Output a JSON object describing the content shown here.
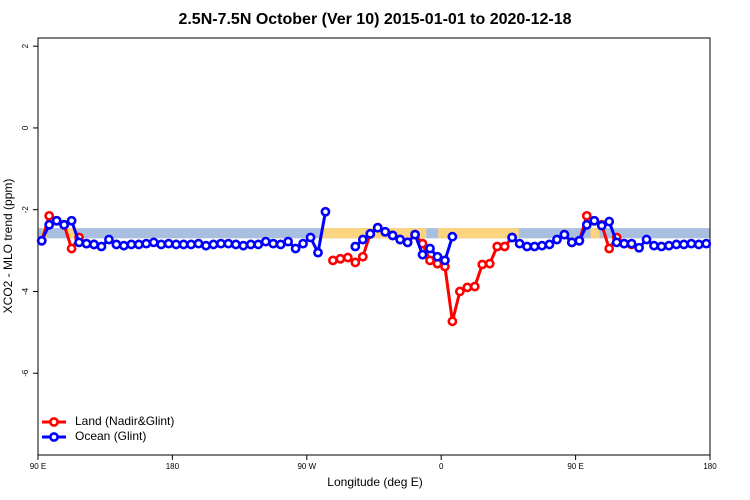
{
  "chart_data": {
    "type": "line",
    "title": "2.5N-7.5N October (Ver 10)   2015-01-01 to 2020-12-18",
    "x_label": "Longitude (deg E)",
    "y_label": "XCO2 - MLO trend (ppm)",
    "xlim": [
      90,
      540
    ],
    "ylim": [
      -8,
      2.2
    ],
    "xticks": [
      {
        "value": 90,
        "label": "90 E"
      },
      180,
      {
        "value": 270,
        "label": "90 W"
      },
      {
        "value": 360,
        "label": "0"
      },
      {
        "value": 450,
        "label": "90 E"
      },
      {
        "value": 540,
        "label": "180"
      }
    ],
    "yticks": [
      2,
      0,
      -2,
      -4,
      -6
    ],
    "legend": "bottom-left",
    "mask_band": {
      "ylim": [
        -2.7,
        -2.45
      ],
      "ocean_color": "#a9bfe0",
      "land_color": "#fbd480",
      "land_spans": [
        [
          280,
          350
        ],
        [
          358,
          412
        ],
        [
          93,
          96
        ],
        [
          110,
          116
        ],
        [
          460,
          466
        ]
      ]
    },
    "x": [
      92.5,
      97.5,
      102.5,
      107.5,
      112.5,
      117.5,
      122.5,
      127.5,
      132.5,
      137.5,
      142.5,
      147.5,
      152.5,
      157.5,
      162.5,
      167.5,
      172.5,
      177.5,
      182.5,
      187.5,
      192.5,
      197.5,
      202.5,
      207.5,
      212.5,
      217.5,
      222.5,
      227.5,
      232.5,
      237.5,
      242.5,
      247.5,
      252.5,
      257.5,
      262.5,
      267.5,
      272.5,
      277.5,
      282.5,
      287.5,
      292.5,
      297.5,
      302.5,
      307.5,
      312.5,
      317.5,
      322.5,
      327.5,
      332.5,
      337.5,
      342.5,
      347.5,
      352.5,
      357.5,
      362.5,
      367.5,
      372.5,
      377.5,
      382.5,
      387.5,
      392.5,
      397.5,
      402.5,
      407.5,
      412.5,
      417.5,
      422.5,
      427.5,
      432.5,
      437.5,
      442.5,
      447.5,
      452.5,
      457.5,
      462.5,
      467.5,
      472.5,
      477.5,
      482.5,
      487.5,
      492.5,
      497.5,
      502.5,
      507.5,
      512.5,
      517.5,
      522.5,
      527.5,
      532.5,
      537.5
    ],
    "series": [
      {
        "name": "Land (Nadir&Glint)",
        "color": "#ff0000",
        "values": [
          -2.76,
          -2.15,
          -2.27,
          -2.37,
          -2.95,
          -2.68,
          -2.83,
          -2.85,
          null,
          null,
          null,
          null,
          null,
          null,
          null,
          null,
          null,
          null,
          null,
          null,
          null,
          null,
          null,
          null,
          null,
          null,
          null,
          null,
          null,
          null,
          null,
          null,
          null,
          null,
          null,
          null,
          null,
          null,
          null,
          -3.24,
          -3.2,
          -3.17,
          -3.29,
          -3.15,
          -2.59,
          -2.44,
          -2.54,
          -2.63,
          -2.73,
          -2.8,
          -2.61,
          -2.83,
          -3.24,
          -3.32,
          -3.39,
          -4.73,
          -4.0,
          -3.9,
          -3.88,
          -3.34,
          -3.32,
          -2.9,
          -2.9,
          -2.68,
          null,
          null,
          null,
          null,
          null,
          null,
          -2.61,
          -2.8,
          -2.76,
          -2.15,
          -2.27,
          -2.37,
          -2.95,
          -2.68,
          -2.83,
          -2.85,
          null,
          null,
          null,
          null,
          null,
          null,
          null,
          null,
          null,
          null
        ]
      },
      {
        "name": "Ocean (Glint)",
        "color": "#0000ff",
        "values": [
          -2.76,
          -2.37,
          -2.27,
          -2.37,
          -2.27,
          -2.8,
          -2.83,
          -2.85,
          -2.9,
          -2.73,
          -2.85,
          -2.88,
          -2.85,
          -2.85,
          -2.83,
          -2.8,
          -2.85,
          -2.83,
          -2.85,
          -2.85,
          -2.85,
          -2.83,
          -2.88,
          -2.85,
          -2.83,
          -2.83,
          -2.85,
          -2.88,
          -2.85,
          -2.85,
          -2.78,
          -2.83,
          -2.85,
          -2.78,
          -2.95,
          -2.83,
          -2.68,
          -3.05,
          -2.05,
          null,
          null,
          null,
          -2.9,
          -2.73,
          -2.59,
          -2.44,
          -2.54,
          -2.63,
          -2.73,
          -2.8,
          -2.61,
          -3.1,
          -2.95,
          -3.15,
          -3.24,
          -2.66,
          null,
          null,
          null,
          null,
          null,
          null,
          null,
          -2.68,
          -2.83,
          -2.9,
          -2.9,
          -2.88,
          -2.85,
          -2.73,
          -2.61,
          -2.8,
          -2.76,
          -2.37,
          -2.27,
          -2.39,
          -2.29,
          -2.8,
          -2.83,
          -2.83,
          -2.93,
          -2.73,
          -2.88,
          -2.9,
          -2.88,
          -2.85,
          -2.85,
          -2.83,
          -2.85,
          -2.83
        ]
      }
    ]
  }
}
